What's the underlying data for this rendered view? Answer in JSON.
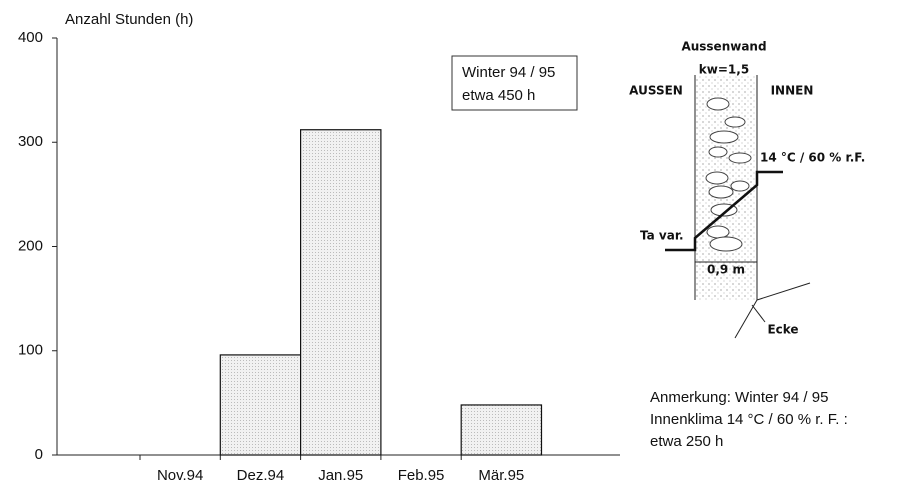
{
  "chart_data": {
    "type": "bar",
    "y_label": "Anzahl Stunden (h)",
    "categories": [
      "Nov.94",
      "Dez.94",
      "Jan.95",
      "Feb.95",
      "Mär.95"
    ],
    "values": [
      0,
      96,
      312,
      0,
      48
    ],
    "color": "#ececec",
    "ylim": [
      0,
      400
    ],
    "yticks": [
      0,
      100,
      200,
      300,
      400
    ],
    "annotation_box": [
      "Winter 94 / 95",
      "etwa 450 h"
    ],
    "note": [
      "Anmerkung: Winter 94 / 95",
      "Innenklima 14 °C / 60 % r. F. :",
      "etwa 250 h"
    ],
    "diagram": {
      "title": "Aussenwand",
      "kw": "kw=1,5",
      "outside": "AUSSEN",
      "inside": "INNEN",
      "inner_climate": "14 °C / 60 % r.F.",
      "outer_temp": "Ta var.",
      "thickness": "0,9 m",
      "corner": "Ecke"
    }
  }
}
